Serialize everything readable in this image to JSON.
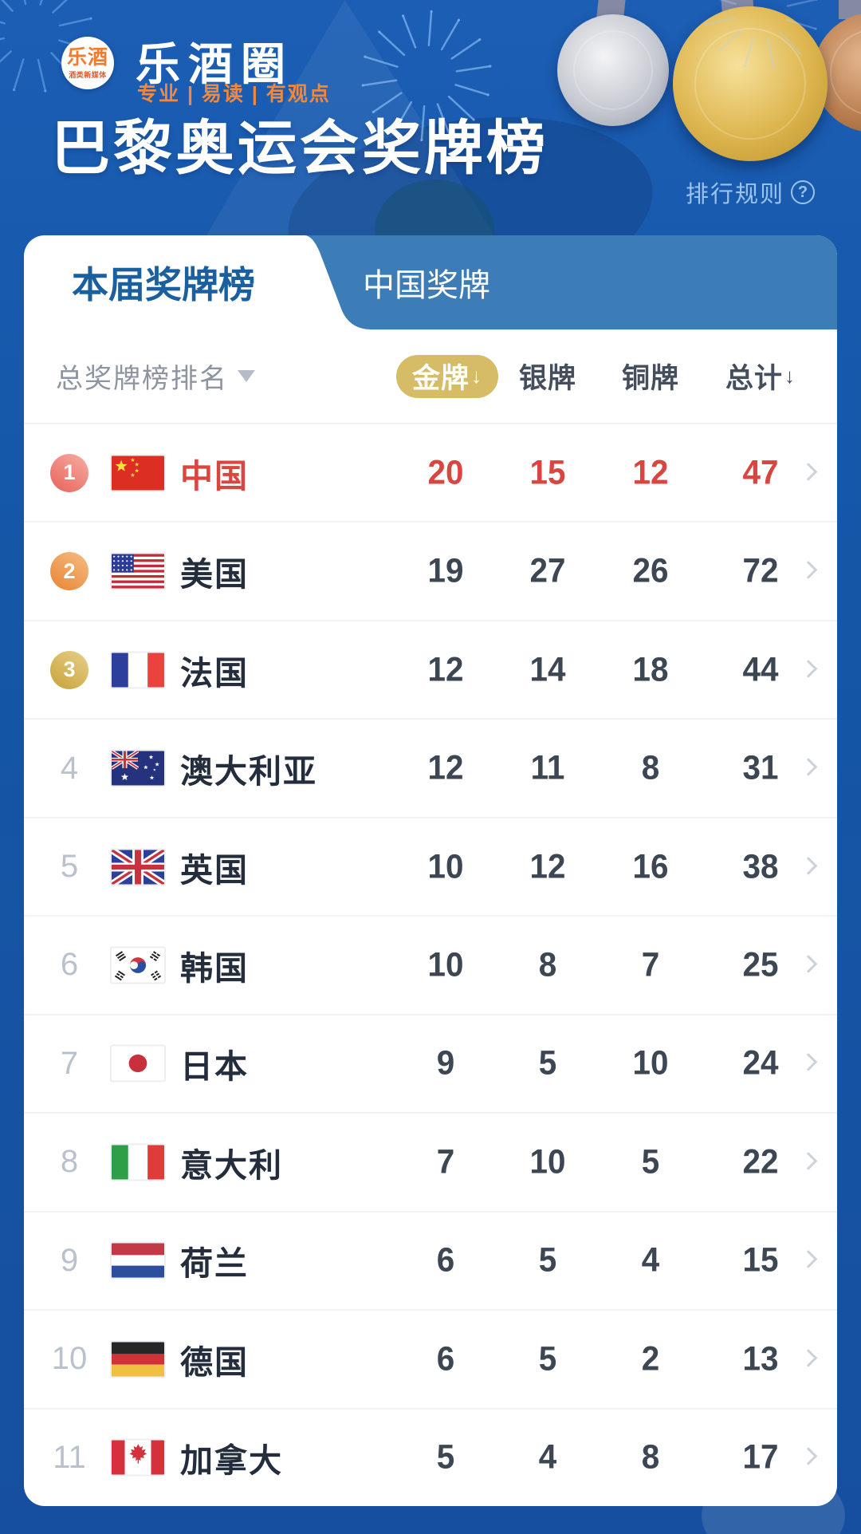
{
  "header": {
    "logo_badge": {
      "title": "乐酒",
      "subtitle": "酒类新媒体"
    },
    "brand": "乐酒圈",
    "tagline": "专业 | 易读 | 有观点",
    "title": "巴黎奥运会奖牌榜",
    "rules": {
      "label": "排行规则",
      "icon": "?"
    }
  },
  "tabs": [
    {
      "label": "本届奖牌榜",
      "active": true
    },
    {
      "label": "中国奖牌",
      "active": false
    }
  ],
  "table": {
    "rank_header": {
      "label": "总奖牌榜排名",
      "icon": "triangle-down-icon"
    },
    "columns": [
      {
        "key": "gold",
        "label": "金牌",
        "sorted": true,
        "sort_arrow": "↓"
      },
      {
        "key": "silver",
        "label": "银牌"
      },
      {
        "key": "bronze",
        "label": "铜牌"
      },
      {
        "key": "total",
        "label": "总计",
        "sort_arrow": "↓"
      }
    ],
    "rows": [
      {
        "rank": 1,
        "country": "中国",
        "flag": "cn",
        "gold": 20,
        "silver": 15,
        "bronze": 12,
        "total": 47,
        "highlight": true
      },
      {
        "rank": 2,
        "country": "美国",
        "flag": "us",
        "gold": 19,
        "silver": 27,
        "bronze": 26,
        "total": 72
      },
      {
        "rank": 3,
        "country": "法国",
        "flag": "fr",
        "gold": 12,
        "silver": 14,
        "bronze": 18,
        "total": 44
      },
      {
        "rank": 4,
        "country": "澳大利亚",
        "flag": "au",
        "gold": 12,
        "silver": 11,
        "bronze": 8,
        "total": 31
      },
      {
        "rank": 5,
        "country": "英国",
        "flag": "gb",
        "gold": 10,
        "silver": 12,
        "bronze": 16,
        "total": 38
      },
      {
        "rank": 6,
        "country": "韩国",
        "flag": "kr",
        "gold": 10,
        "silver": 8,
        "bronze": 7,
        "total": 25
      },
      {
        "rank": 7,
        "country": "日本",
        "flag": "jp",
        "gold": 9,
        "silver": 5,
        "bronze": 10,
        "total": 24
      },
      {
        "rank": 8,
        "country": "意大利",
        "flag": "it",
        "gold": 7,
        "silver": 10,
        "bronze": 5,
        "total": 22
      },
      {
        "rank": 9,
        "country": "荷兰",
        "flag": "nl",
        "gold": 6,
        "silver": 5,
        "bronze": 4,
        "total": 15
      },
      {
        "rank": 10,
        "country": "德国",
        "flag": "de",
        "gold": 6,
        "silver": 5,
        "bronze": 2,
        "total": 13
      },
      {
        "rank": 11,
        "country": "加拿大",
        "flag": "ca",
        "gold": 5,
        "silver": 4,
        "bronze": 8,
        "total": 17
      }
    ]
  },
  "icons": {
    "rules_help": "question-circle-icon",
    "rank_sort": "triangle-down-icon",
    "gold_sort": "arrow-down-icon",
    "total_sort": "arrow-down-icon",
    "row_link": "chevron-right-icon",
    "decor": [
      "gold-medal-icon",
      "silver-medal-icon",
      "bronze-medal-icon",
      "fireworks-icon"
    ]
  },
  "colors": {
    "background_blue": "#1557A8",
    "tab_inactive_bg": "#3C7CB7",
    "active_tab_text": "#1A5F9E",
    "gold_pill": "#D6BC66",
    "highlight_red": "#D9453F",
    "country_text": "#232D3B",
    "number_text": "#3D4754",
    "header_gray": "#8D949F",
    "rank_gray": "#B9C1CC",
    "divider": "#F1F3F6",
    "rules_link": "#9CC3EF",
    "badge_rank1": "#EC7A72",
    "badge_rank2": "#EE9A50",
    "badge_rank3": "#D6B95E"
  }
}
